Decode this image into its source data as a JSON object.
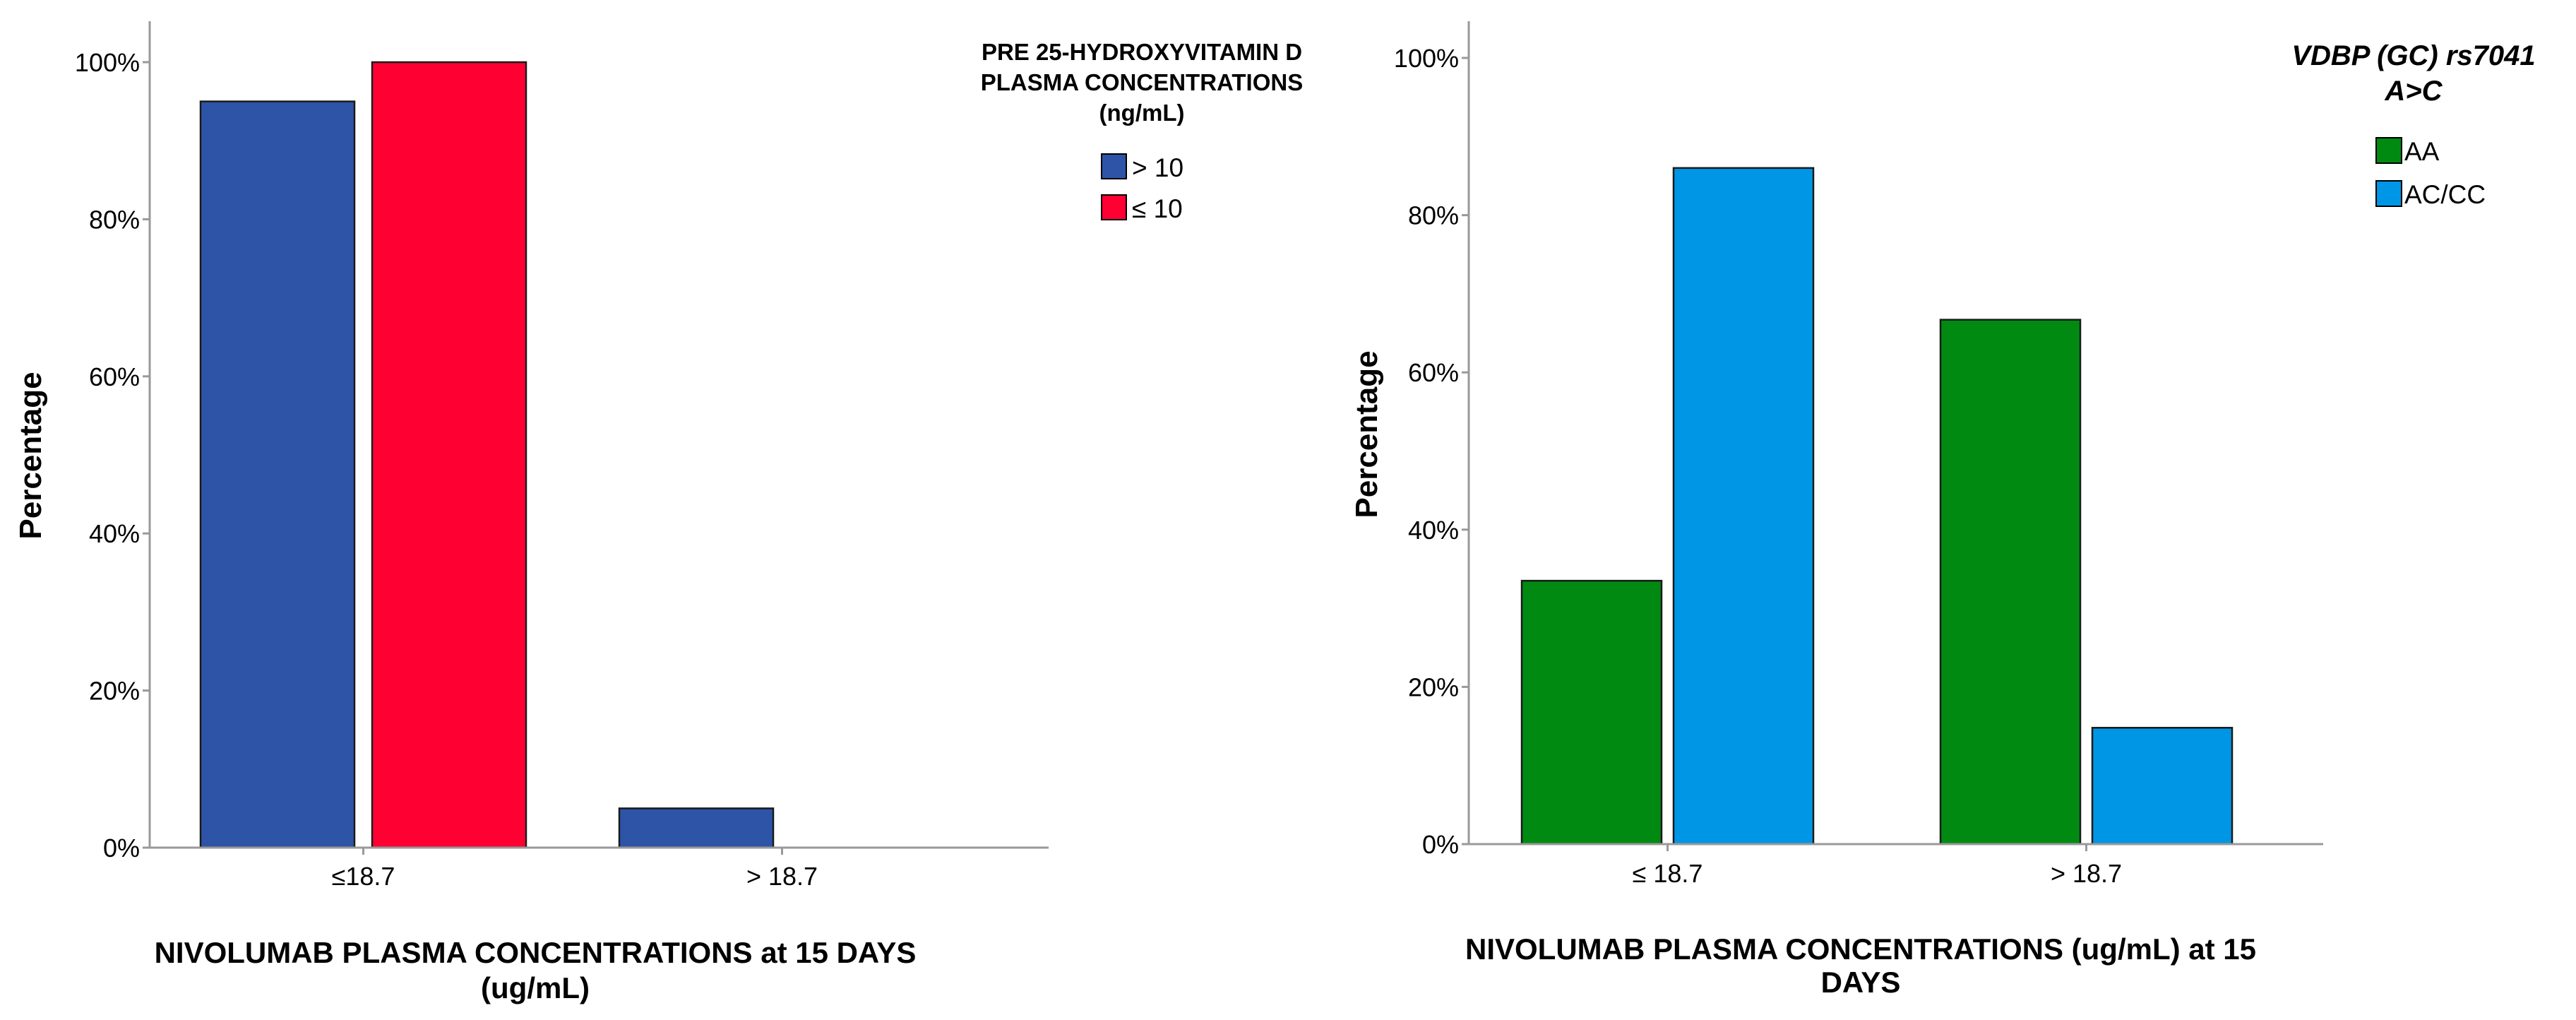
{
  "chart_data": [
    {
      "type": "bar",
      "categories": [
        "≤18.7",
        "> 18.7"
      ],
      "series": [
        {
          "name": "> 10",
          "color": "#2E54A8",
          "values": [
            95,
            5
          ]
        },
        {
          "name": "≤ 10",
          "color": "#FF0033",
          "values": [
            100,
            0
          ]
        }
      ],
      "ylabel": "Percentage",
      "xlabel_lines": [
        "NIVOLUMAB PLASMA CONCENTRATIONS at 15 DAYS",
        "(ug/mL)"
      ],
      "legend_title_lines": [
        "PRE 25-HYDROXYVITAMIN D",
        "PLASMA CONCENTRATIONS",
        "(ng/mL)"
      ],
      "legend_position": "top-right",
      "ylim": [
        0,
        100
      ],
      "yticks": [
        "0%",
        "20%",
        "40%",
        "60%",
        "80%",
        "100%"
      ],
      "grid": false
    },
    {
      "type": "bar",
      "categories": [
        "≤ 18.7",
        "> 18.7"
      ],
      "series": [
        {
          "name": "AA",
          "color": "#008A12",
          "values": [
            33.5,
            66.7
          ]
        },
        {
          "name": "AC/CC",
          "color": "#0096E6",
          "values": [
            86,
            14.8
          ]
        }
      ],
      "ylabel": "Percentage",
      "xlabel_lines": [
        "NIVOLUMAB PLASMA CONCENTRATIONS (ug/mL) at 15",
        "DAYS"
      ],
      "legend_title_lines": [
        "VDBP (GC) rs7041",
        "A>C"
      ],
      "legend_position": "top-right",
      "ylim": [
        0,
        100
      ],
      "yticks": [
        "0%",
        "20%",
        "40%",
        "60%",
        "80%",
        "100%"
      ],
      "grid": false
    }
  ]
}
